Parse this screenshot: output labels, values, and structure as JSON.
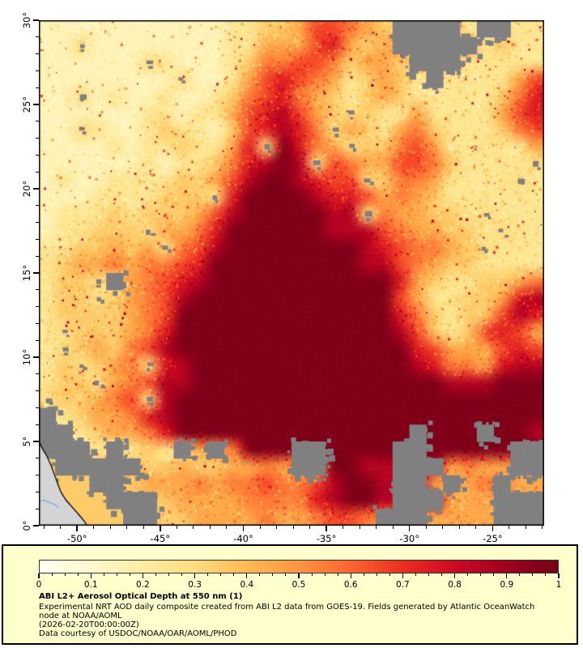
{
  "chart_data": {
    "type": "heatmap",
    "variable": "Aerosol Optical Depth at 550 nm",
    "title": "ABI L2+ Aerosol Optical Depth at 550 nm (1)",
    "description": "Experimental NRT AOD daily composite created from ABI L2 data from GOES-19. Fields generated by Atlantic OceanWatch node at NOAA/AOML",
    "timestamp": "(2026-02-20T00:00:00Z)",
    "credit": "Data courtesy of USDOC/NOAA/OAR/AOML/PHOD",
    "x_range": [
      -52.3,
      -21.9
    ],
    "y_range": [
      0,
      30
    ],
    "x_ticks": [
      {
        "value": -50,
        "label": "-50°"
      },
      {
        "value": -45,
        "label": "-45°"
      },
      {
        "value": -40,
        "label": "-40°"
      },
      {
        "value": -35,
        "label": "-35°"
      },
      {
        "value": -30,
        "label": "-30°"
      },
      {
        "value": -25,
        "label": "-25°"
      }
    ],
    "y_ticks": [
      {
        "value": 0,
        "label": "0°"
      },
      {
        "value": 5,
        "label": "5°"
      },
      {
        "value": 10,
        "label": "10°"
      },
      {
        "value": 15,
        "label": "15°"
      },
      {
        "value": 20,
        "label": "20°"
      },
      {
        "value": 25,
        "label": "25°"
      },
      {
        "value": 30,
        "label": "30°"
      }
    ],
    "minor_tick_step_deg": 1,
    "colorbar": {
      "min": 0,
      "max": 1,
      "minor_step": 0.025,
      "major_ticks": [
        {
          "value": 0,
          "label": "0"
        },
        {
          "value": 0.1,
          "label": "0.1"
        },
        {
          "value": 0.2,
          "label": "0.2"
        },
        {
          "value": 0.3,
          "label": "0.3"
        },
        {
          "value": 0.4,
          "label": "0.4"
        },
        {
          "value": 0.5,
          "label": "0.5"
        },
        {
          "value": 0.6,
          "label": "0.6"
        },
        {
          "value": 0.7,
          "label": "0.7"
        },
        {
          "value": 0.8,
          "label": "0.8"
        },
        {
          "value": 0.9,
          "label": "0.9"
        },
        {
          "value": 1,
          "label": "1"
        }
      ]
    },
    "colormap_stops": [
      [
        0.0,
        "#fffff0"
      ],
      [
        0.1,
        "#fff9cd"
      ],
      [
        0.2,
        "#feeca1"
      ],
      [
        0.3,
        "#fedd7f"
      ],
      [
        0.4,
        "#feb952"
      ],
      [
        0.5,
        "#fd9540"
      ],
      [
        0.6,
        "#fc6430"
      ],
      [
        0.7,
        "#ed2e21"
      ],
      [
        0.8,
        "#cc0a22"
      ],
      [
        0.9,
        "#a00021"
      ],
      [
        1.0,
        "#730015"
      ]
    ],
    "colors": {
      "no_data": "#808080",
      "land": "#d4d4d4",
      "river": "#88b0e0",
      "coastline": "#000000",
      "legend_background": "#ffffcc",
      "axis": "#000000"
    },
    "grid_encoding": {
      "digit": "AOD value = 0.05 + digit*0.1 (9 = ~0.97 saturated)",
      "X": "no-data (cloud / glint), gray",
      "x": "small cloud speck, gray",
      "L": "land"
    },
    "grid_rows": [
      "111111111112233466543XXXX2XX22",
      "11x111111112244467434XXXXX2322",
      "111111x211123556653443XXX22222",
      "11111111x11246765423432X222246",
      "11x121121123567543234322222357",
      "111111221224678643x32242222467",
      "11x21123221367875x432453222356",
      "1111212232247x9754x33564222224",
      "1111112122357898x654466532222x",
      "1211222233468998766x35542222x2",
      "1112222333x7999987764543222222",
      "1222323334689999988x544332x222",
      "122333x44579999998886544332x22",
      "2233434x568999999998765543x222",
      "234454556799999999988654332222",
      "233xX4567899999999999743223345",
      "233x34568999999999999642233478",
      "233334569999999999999753233687",
      "2x3334579999999999999863236764",
      "2x3435689999999999999976444676",
      "23x345x78999999999999987554788",
      "233x45688999999999999999888999",
      "x33456x89999999999999999999999",
      "X23445789999999999999999999999",
      "XX23445799999999999999X999X998",
      "XXX2X232X4X5999XX9999XX99999XX",
      "LXXXXX334334454XX9988XXX4544XX",
      "LLLXX3444545565568998XX4X45X44",
      "LLLLXXX34444555578998XXX444XXX",
      "LLLLLXX3344445445665XXX4444XXX"
    ],
    "coastline": [
      [
        -52.3,
        5.0
      ],
      [
        -52.1,
        4.6
      ],
      [
        -51.8,
        4.1
      ],
      [
        -51.55,
        3.55
      ],
      [
        -51.35,
        3.0
      ],
      [
        -51.15,
        2.45
      ],
      [
        -50.95,
        1.95
      ],
      [
        -50.65,
        1.5
      ],
      [
        -50.25,
        1.05
      ],
      [
        -49.85,
        0.6
      ],
      [
        -49.55,
        0.25
      ],
      [
        -49.4,
        0.0
      ]
    ],
    "river": [
      [
        -52.3,
        1.45
      ],
      [
        -52.0,
        1.52
      ],
      [
        -51.7,
        1.38
      ],
      [
        -51.4,
        1.28
      ],
      [
        -51.12,
        1.1
      ]
    ]
  }
}
